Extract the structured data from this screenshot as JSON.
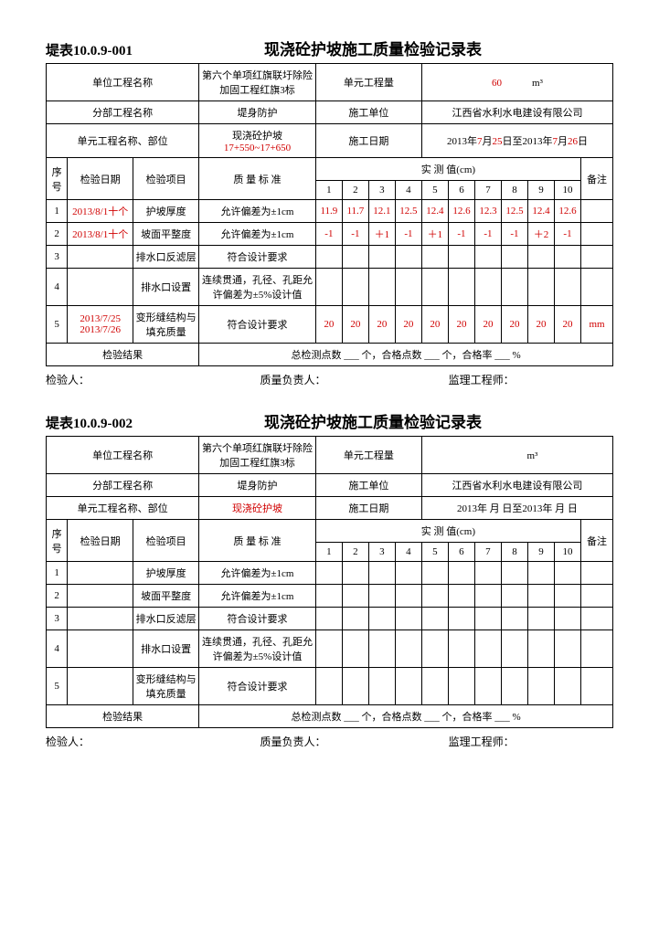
{
  "forms": [
    {
      "code": "堤表10.0.9-001",
      "title": "现浇砼护坡施工质量检验记录表",
      "header": {
        "unitProjNameLabel": "单位工程名称",
        "unitProjName": "第六个单项红旗联圩除险加固工程红旗3标",
        "unitQtyLabel": "单元工程量",
        "unitQty": "60",
        "unitQtyUnit": "m³",
        "subProjLabel": "分部工程名称",
        "subProj": "堤身防护",
        "constructorLabel": "施工单位",
        "constructor": "江西省水利水电建设有限公司",
        "unitPartLabel": "单元工程名称、部位",
        "unitPart": "现浇砼护坡\n17+550~17+650",
        "dateLabel": "施工日期",
        "datePrefix": "2013年",
        "dateM1": "7",
        "dateD1": "25",
        "dateMid": "日至2013年",
        "dateM2": "7",
        "dateD2": "26",
        "dateSuffix": "日"
      },
      "colHeaders": {
        "seq": "序号",
        "date": "检验日期",
        "item": "检验项目",
        "std": "质 量 标 准",
        "measure": "实 测 值(cm)",
        "note": "备注",
        "nums": [
          "1",
          "2",
          "3",
          "4",
          "5",
          "6",
          "7",
          "8",
          "9",
          "10"
        ]
      },
      "rows": [
        {
          "n": "1",
          "date": "2013/8/1十个",
          "item": "护坡厚度",
          "std": "允许偏差为±1cm",
          "m": [
            "11.9",
            "11.7",
            "12.1",
            "12.5",
            "12.4",
            "12.6",
            "12.3",
            "12.5",
            "12.4",
            "12.6"
          ],
          "note": "",
          "red": true
        },
        {
          "n": "2",
          "date": "2013/8/1十个",
          "item": "坡面平整度",
          "std": "允许偏差为±1cm",
          "m": [
            "-1",
            "-1",
            "＋1",
            "-1",
            "＋1",
            "-1",
            "-1",
            "-1",
            "＋2",
            "-1"
          ],
          "note": "",
          "red": true
        },
        {
          "n": "3",
          "date": "",
          "item": "排水口反滤层",
          "std": "符合设计要求",
          "m": [
            "",
            "",
            "",
            "",
            "",
            "",
            "",
            "",
            "",
            ""
          ],
          "note": ""
        },
        {
          "n": "4",
          "date": "",
          "item": "排水口设置",
          "std": "连续贯通，孔径、孔距允许偏差为±5%设计值",
          "m": [
            "",
            "",
            "",
            "",
            "",
            "",
            "",
            "",
            "",
            ""
          ],
          "note": ""
        },
        {
          "n": "5",
          "date": "2013/7/25\n2013/7/26",
          "item": "变形缝结构与填充质量",
          "std": "符合设计要求",
          "m": [
            "20",
            "20",
            "20",
            "20",
            "20",
            "20",
            "20",
            "20",
            "20",
            "20"
          ],
          "note": "mm",
          "red": true
        }
      ],
      "resultLabel": "检验结果",
      "resultText": "总检测点数 ___ 个，合格点数 ___ 个，合格率 ___ %",
      "sig": {
        "inspector": "检验人：",
        "quality": "质量负责人：",
        "supervisor": "监理工程师："
      }
    },
    {
      "code": "堤表10.0.9-002",
      "title": "现浇砼护坡施工质量检验记录表",
      "header": {
        "unitProjNameLabel": "单位工程名称",
        "unitProjName": "第六个单项红旗联圩除险加固工程红旗3标",
        "unitQtyLabel": "单元工程量",
        "unitQty": "",
        "unitQtyUnit": "m³",
        "subProjLabel": "分部工程名称",
        "subProj": "堤身防护",
        "constructorLabel": "施工单位",
        "constructor": "江西省水利水电建设有限公司",
        "unitPartLabel": "单元工程名称、部位",
        "unitPart": "现浇砼护坡",
        "dateLabel": "施工日期",
        "date": "2013年  月  日至2013年  月  日"
      },
      "colHeaders": {
        "seq": "序号",
        "date": "检验日期",
        "item": "检验项目",
        "std": "质 量 标 准",
        "measure": "实 测 值(cm)",
        "note": "备注",
        "nums": [
          "1",
          "2",
          "3",
          "4",
          "5",
          "6",
          "7",
          "8",
          "9",
          "10"
        ]
      },
      "rows": [
        {
          "n": "1",
          "date": "",
          "item": "护坡厚度",
          "std": "允许偏差为±1cm",
          "m": [
            "",
            "",
            "",
            "",
            "",
            "",
            "",
            "",
            "",
            ""
          ],
          "note": ""
        },
        {
          "n": "2",
          "date": "",
          "item": "坡面平整度",
          "std": "允许偏差为±1cm",
          "m": [
            "",
            "",
            "",
            "",
            "",
            "",
            "",
            "",
            "",
            ""
          ],
          "note": ""
        },
        {
          "n": "3",
          "date": "",
          "item": "排水口反滤层",
          "std": "符合设计要求",
          "m": [
            "",
            "",
            "",
            "",
            "",
            "",
            "",
            "",
            "",
            ""
          ],
          "note": ""
        },
        {
          "n": "4",
          "date": "",
          "item": "排水口设置",
          "std": "连续贯通，孔径、孔距允许偏差为±5%设计值",
          "m": [
            "",
            "",
            "",
            "",
            "",
            "",
            "",
            "",
            "",
            ""
          ],
          "note": ""
        },
        {
          "n": "5",
          "date": "",
          "item": "变形缝结构与填充质量",
          "std": "符合设计要求",
          "m": [
            "",
            "",
            "",
            "",
            "",
            "",
            "",
            "",
            "",
            ""
          ],
          "note": ""
        }
      ],
      "resultLabel": "检验结果",
      "resultText": "总检测点数 ___ 个，合格点数 ___ 个，合格率 ___ %",
      "sig": {
        "inspector": "检验人：",
        "quality": "质量负责人：",
        "supervisor": "监理工程师："
      }
    }
  ]
}
